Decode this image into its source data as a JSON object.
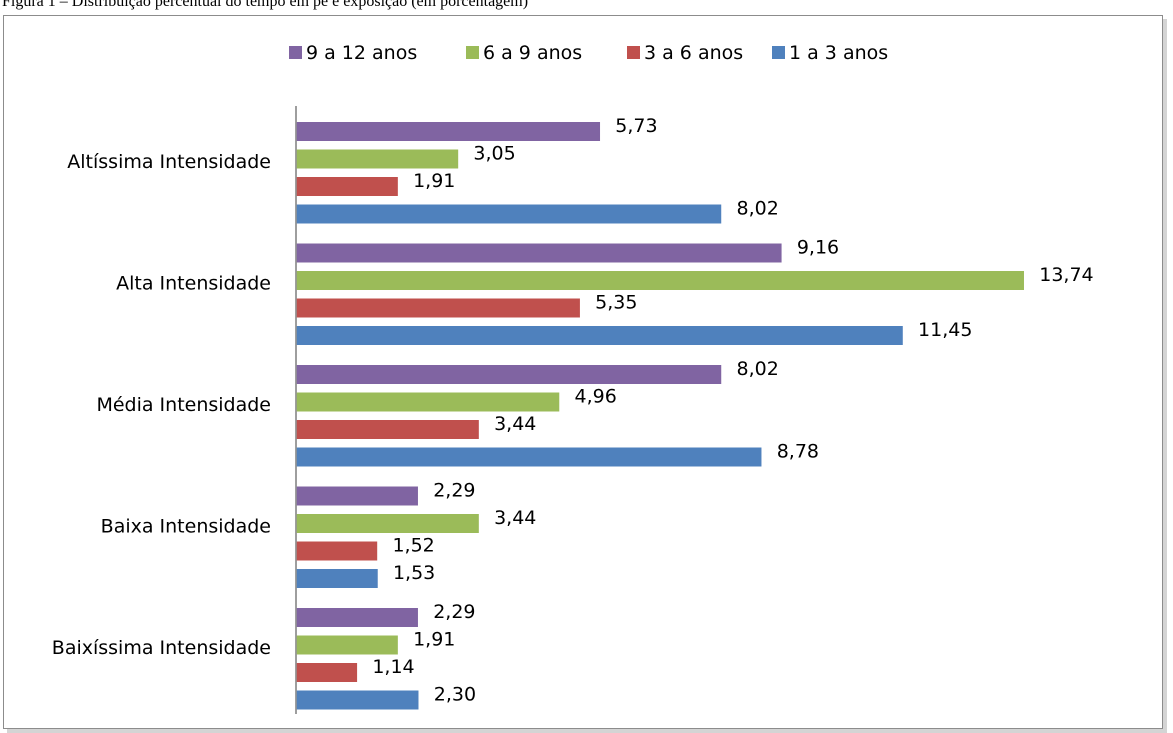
{
  "caption": "Figura 1 – Distribuição percentual do tempo em pé e exposição (em porcentagem)",
  "chart_data": {
    "type": "bar",
    "orientation": "horizontal",
    "categories": [
      "Altíssima Intensidade",
      "Alta Intensidade",
      "Média Intensidade",
      "Baixa Intensidade",
      "Baixíssima Intensidade"
    ],
    "series": [
      {
        "name": "9 a 12 anos",
        "color": "#8064a2",
        "values": [
          5.73,
          9.16,
          8.02,
          2.29,
          2.29
        ],
        "labels": [
          "5,73",
          "9,16",
          "8,02",
          "2,29",
          "2,29"
        ]
      },
      {
        "name": "6 a 9 anos",
        "color": "#9bbb59",
        "values": [
          3.05,
          13.74,
          4.96,
          3.44,
          1.91
        ],
        "labels": [
          "3,05",
          "13,74",
          "4,96",
          "3,44",
          "1,91"
        ]
      },
      {
        "name": "3 a 6 anos",
        "color": "#c0504d",
        "values": [
          1.91,
          5.35,
          3.44,
          1.52,
          1.14
        ],
        "labels": [
          "1,91",
          "5,35",
          "3,44",
          "1,52",
          "1,14"
        ]
      },
      {
        "name": "1 a 3 anos",
        "color": "#4f81bd",
        "values": [
          8.02,
          11.45,
          8.78,
          1.53,
          2.3
        ],
        "labels": [
          "8,02",
          "11,45",
          "8,78",
          "1,53",
          "2,30"
        ]
      }
    ],
    "xlim": [
      0,
      14
    ],
    "grid": false,
    "legend_position": "top"
  }
}
